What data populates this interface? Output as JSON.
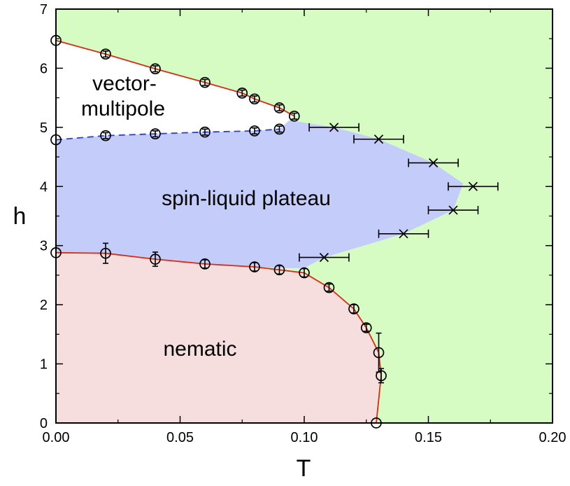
{
  "chart_data": {
    "type": "scatter",
    "title": "",
    "xlabel": "T",
    "ylabel": "h",
    "xlim": [
      0.0,
      0.2
    ],
    "ylim": [
      0,
      7
    ],
    "x_ticks": [
      "0.00",
      "0.05",
      "0.10",
      "0.15",
      "0.20"
    ],
    "x_tick_values": [
      0.0,
      0.05,
      0.1,
      0.15,
      0.2
    ],
    "y_ticks": [
      "0",
      "1",
      "2",
      "3",
      "4",
      "5",
      "6",
      "7"
    ],
    "y_tick_values": [
      0,
      1,
      2,
      3,
      4,
      5,
      6,
      7
    ],
    "grid": false,
    "regions": [
      {
        "label_lines": [
          "vector-",
          "multipole"
        ],
        "label_at": [
          0.0,
          5.6
        ],
        "color": "#ffffff"
      },
      {
        "label_lines": [
          "spin-liquid plateau"
        ],
        "label_at": [
          0.0,
          3.9
        ],
        "color": "#c4ccfa"
      },
      {
        "label_lines": [
          "nematic"
        ],
        "label_at": [
          0.0,
          1.2
        ],
        "color": "#f6dede"
      }
    ],
    "background_color": "#d6fcc4",
    "series": [
      {
        "marker": "circle",
        "line": "solid",
        "color": "#dd2a12",
        "points": [
          {
            "x": 0.0,
            "y": 6.47,
            "err_y": 0.0
          },
          {
            "x": 0.02,
            "y": 6.24,
            "err_y": 0.05
          },
          {
            "x": 0.04,
            "y": 5.99,
            "err_y": 0.05
          },
          {
            "x": 0.06,
            "y": 5.76,
            "err_y": 0.05
          },
          {
            "x": 0.075,
            "y": 5.58,
            "err_y": 0.05
          },
          {
            "x": 0.08,
            "y": 5.48,
            "err_y": 0.05
          },
          {
            "x": 0.09,
            "y": 5.33,
            "err_y": 0.05
          },
          {
            "x": 0.096,
            "y": 5.19,
            "err_y": 0.05
          }
        ]
      },
      {
        "marker": "circle",
        "line": "dashed",
        "color": "#2a3ed8",
        "points": [
          {
            "x": 0.0,
            "y": 4.79,
            "err_y": 0.0
          },
          {
            "x": 0.02,
            "y": 4.86,
            "err_y": 0.05
          },
          {
            "x": 0.04,
            "y": 4.89,
            "err_y": 0.05
          },
          {
            "x": 0.06,
            "y": 4.92,
            "err_y": 0.05
          },
          {
            "x": 0.08,
            "y": 4.94,
            "err_y": 0.05
          },
          {
            "x": 0.09,
            "y": 4.97,
            "err_y": 0.05
          }
        ]
      },
      {
        "marker": "circle",
        "line": "solid",
        "color": "#dd2a12",
        "points": [
          {
            "x": 0.0,
            "y": 2.88,
            "err_y": 0.0
          },
          {
            "x": 0.02,
            "y": 2.87,
            "err_y": 0.17
          },
          {
            "x": 0.04,
            "y": 2.77,
            "err_y": 0.12
          },
          {
            "x": 0.06,
            "y": 2.69,
            "err_y": 0.07
          },
          {
            "x": 0.08,
            "y": 2.64,
            "err_y": 0.07
          },
          {
            "x": 0.09,
            "y": 2.59,
            "err_y": 0.07
          },
          {
            "x": 0.1,
            "y": 2.54,
            "err_y": 0.07
          },
          {
            "x": 0.11,
            "y": 2.29,
            "err_y": 0.06
          },
          {
            "x": 0.12,
            "y": 1.93,
            "err_y": 0.07
          },
          {
            "x": 0.125,
            "y": 1.61,
            "err_y": 0.06
          },
          {
            "x": 0.13,
            "y": 1.19,
            "err_y": 0.33
          },
          {
            "x": 0.131,
            "y": 0.8,
            "err_y": 0.12
          },
          {
            "x": 0.129,
            "y": 0.0,
            "err_y": 0.0
          }
        ]
      },
      {
        "marker": "x",
        "line": "none",
        "color": "#000000",
        "points": [
          {
            "x": 0.108,
            "y": 2.8,
            "err_x": 0.01
          },
          {
            "x": 0.14,
            "y": 3.2,
            "err_x": 0.01
          },
          {
            "x": 0.16,
            "y": 3.6,
            "err_x": 0.01
          },
          {
            "x": 0.168,
            "y": 4.0,
            "err_x": 0.01
          },
          {
            "x": 0.152,
            "y": 4.4,
            "err_x": 0.01
          },
          {
            "x": 0.13,
            "y": 4.8,
            "err_x": 0.01
          },
          {
            "x": 0.112,
            "y": 5.0,
            "err_x": 0.01
          }
        ]
      }
    ],
    "annotations": [
      "vector-",
      "multipole",
      "spin-liquid plateau",
      "nematic"
    ]
  }
}
